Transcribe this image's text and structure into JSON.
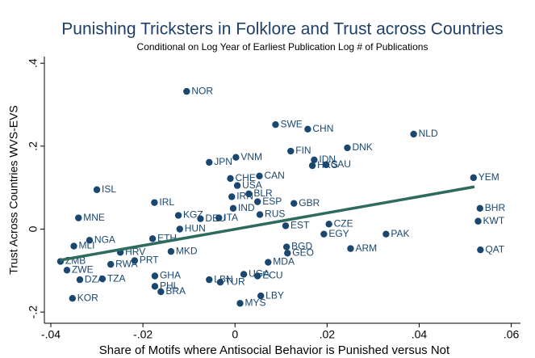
{
  "chart_data": {
    "type": "scatter",
    "title": "Punishing Tricksters in Folklore and Trust across Countries",
    "subtitle": "Conditional on Log Year of Earliest Publication Log # of Publications",
    "xlabel": "Share of Motifs where Antisocial Behavior is Punished versus Not",
    "ylabel": "Trust Across Countries WVS-EVS",
    "color": "#1a476f",
    "fit_color": "#2e6b5e",
    "xlim": [
      -0.0414,
      0.062
    ],
    "ylim": [
      -0.227,
      0.416
    ],
    "xticks": [
      {
        "value": -0.04,
        "label": "-.04"
      },
      {
        "value": -0.02,
        "label": "-.02"
      },
      0,
      {
        "value": 0.02,
        "label": ".02"
      },
      {
        "value": 0.04,
        "label": ".04"
      },
      {
        "value": 0.06,
        "label": ".06"
      }
    ],
    "yticks": [
      {
        "value": -0.2,
        "label": "-.2"
      },
      0,
      {
        "value": 0.2,
        "label": ".2"
      },
      {
        "value": 0.4,
        "label": ".4"
      }
    ],
    "labels": [
      "NOR",
      "SWE",
      "CHN",
      "NLD",
      "DNK",
      "FIN",
      "IDN",
      "VNM",
      "JPN",
      "HKG",
      "SAU",
      "YEM",
      "ISL",
      "CAN",
      "CHE",
      "USA",
      "IRN",
      "IRL",
      "BLR",
      "ESP",
      "GBR",
      "BHR",
      "IND",
      "RUS",
      "MNE",
      "KGZ",
      "ITA",
      "DEU",
      "KWT",
      "CZE",
      "EGY",
      "PAK",
      "HUN",
      "ETH",
      "NGA",
      "MLI",
      "BGD",
      "ARM",
      "QAT",
      "GEO",
      "MKD",
      "HRV",
      "PRT",
      "RWA",
      "ZMB",
      "ZWE",
      "MDA",
      "ECU",
      "GHA",
      "DZA",
      "TZA",
      "LBN",
      "TUR",
      "PHL",
      "BRA",
      "UGA",
      "LBY",
      "MYS",
      "KOR",
      "EST"
    ],
    "x": [
      -0.0105,
      0.0088,
      0.0158,
      0.0388,
      0.0244,
      0.0121,
      0.0172,
      0.0002,
      -0.0056,
      0.0168,
      0.0198,
      0.0518,
      -0.03,
      0.0053,
      -0.001,
      0.0005,
      -0.0007,
      -0.0175,
      0.003,
      0.0049,
      0.0128,
      0.0532,
      -0.0004,
      0.0054,
      -0.034,
      -0.0123,
      -0.0035,
      -0.0075,
      0.0528,
      0.0204,
      0.0193,
      0.0328,
      -0.012,
      -0.0179,
      -0.0316,
      -0.035,
      0.0112,
      0.0251,
      0.0533,
      0.0114,
      -0.0139,
      -0.0249,
      -0.0218,
      -0.027,
      -0.0379,
      -0.0365,
      0.0072,
      0.0049,
      -0.0174,
      -0.0337,
      -0.0288,
      -0.0056,
      -0.0032,
      -0.0174,
      -0.0161,
      0.0019,
      0.0056,
      0.0011,
      -0.0353,
      0.011
    ],
    "y": [
      0.332,
      0.252,
      0.241,
      0.229,
      0.196,
      0.188,
      0.167,
      0.173,
      0.161,
      0.153,
      0.155,
      0.124,
      0.095,
      0.128,
      0.122,
      0.105,
      0.078,
      0.064,
      0.085,
      0.066,
      0.062,
      0.05,
      0.05,
      0.035,
      0.027,
      0.033,
      0.027,
      0.025,
      0.019,
      0.012,
      -0.012,
      -0.012,
      0,
      -0.023,
      -0.027,
      -0.041,
      -0.043,
      -0.047,
      -0.05,
      -0.058,
      -0.054,
      -0.056,
      -0.076,
      -0.085,
      -0.078,
      -0.099,
      -0.08,
      -0.113,
      -0.113,
      -0.122,
      -0.12,
      -0.122,
      -0.128,
      -0.138,
      -0.151,
      -0.109,
      -0.161,
      -0.179,
      -0.167,
      0.008
    ],
    "fit": {
      "x": [
        -0.038,
        0.052
      ],
      "y": [
        -0.075,
        0.102
      ]
    }
  }
}
